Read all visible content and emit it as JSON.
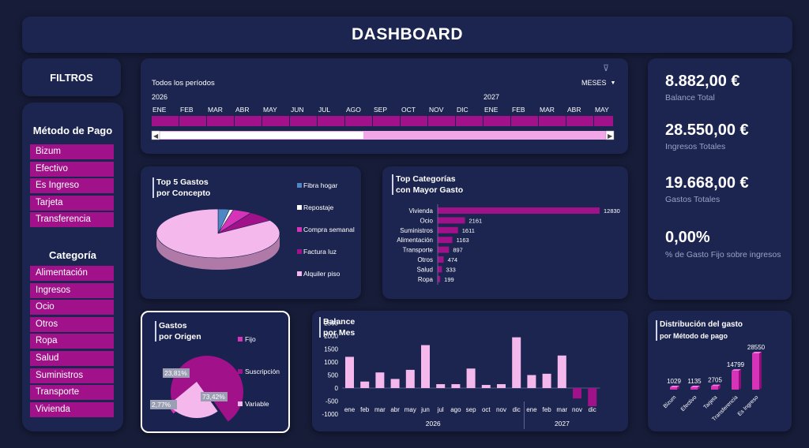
{
  "header": {
    "title": "DASHBOARD"
  },
  "filters": {
    "title": "FILTROS"
  },
  "payment_slicer": {
    "title": "Método de Pago",
    "items": [
      "Bizum",
      "Efectivo",
      "Es Ingreso",
      "Tarjeta",
      "Transferencia"
    ]
  },
  "category_slicer": {
    "title": "Categoría",
    "items": [
      "Alimentación",
      "Ingresos",
      "Ocio",
      "Otros",
      "Ropa",
      "Salud",
      "Suministros",
      "Transporte",
      "Vivienda"
    ]
  },
  "timeline": {
    "period_label": "Todos los períodos",
    "granularity": "MESES",
    "years": [
      "2026",
      "2027"
    ],
    "months": [
      "ENE",
      "FEB",
      "MAR",
      "ABR",
      "MAY",
      "JUN",
      "JUL",
      "AGO",
      "SEP",
      "OCT",
      "NOV",
      "DIC",
      "ENE",
      "FEB",
      "MAR",
      "ABR",
      "MAY"
    ],
    "colors": {
      "bar": "#a0118a",
      "track": "#f2a6e8"
    }
  },
  "kpis": [
    {
      "value": "8.882,00 €",
      "label": "Balance Total"
    },
    {
      "value": "28.550,00 €",
      "label": "Ingresos Totales"
    },
    {
      "value": "19.668,00 €",
      "label": "Gastos Totales"
    },
    {
      "value": "0,00%",
      "label": "% de Gasto Fijo sobre ingresos"
    }
  ],
  "top5": {
    "title1": "Top 5 Gastos",
    "title2": "por Concepto",
    "legend": [
      {
        "label": "Fibra hogar",
        "color": "#4f87c4"
      },
      {
        "label": "Repostaje",
        "color": "#ffffff"
      },
      {
        "label": "Compra semanal",
        "color": "#d633b8"
      },
      {
        "label": "Factura luz",
        "color": "#a0118a"
      },
      {
        "label": "Alquiler piso",
        "color": "#f5b8ec"
      }
    ]
  },
  "topcat": {
    "title1": "Top Categorías",
    "title2": "con Mayor Gasto"
  },
  "origen": {
    "title1": "Gastos",
    "title2": "por Origen",
    "legend": [
      {
        "label": "Fijo",
        "color": "#d633b8"
      },
      {
        "label": "Suscripción",
        "color": "#a0118a"
      },
      {
        "label": "Variable",
        "color": "#f5b8ec"
      }
    ],
    "slice_labels": [
      "23,81%",
      "73,42%",
      "2,77%"
    ]
  },
  "balance": {
    "title1": "Balance",
    "title2": "por Mes",
    "years": [
      "2026",
      "2027"
    ]
  },
  "dist": {
    "title1": "Distribución del gasto",
    "title2": "por Método de pago"
  },
  "chart_data": [
    {
      "type": "pie",
      "labels": [
        "Fibra hogar",
        "Repostaje",
        "Compra semanal",
        "Factura luz",
        "Alquiler piso"
      ],
      "values": [
        3,
        1,
        5,
        7,
        84
      ]
    },
    {
      "type": "bar",
      "orientation": "horizontal",
      "categories": [
        "Vivienda",
        "Ocio",
        "Suministros",
        "Alimentación",
        "Transporte",
        "Otros",
        "Salud",
        "Ropa"
      ],
      "values": [
        12830,
        2161,
        1611,
        1163,
        897,
        474,
        333,
        199
      ]
    },
    {
      "type": "pie",
      "labels": [
        "Fijo",
        "Suscripción",
        "Variable"
      ],
      "values": [
        2.77,
        73.42,
        23.81
      ]
    },
    {
      "type": "bar",
      "categories": [
        "ene",
        "feb",
        "mar",
        "abr",
        "may",
        "jun",
        "jul",
        "ago",
        "sep",
        "oct",
        "nov",
        "dic",
        "ene",
        "feb",
        "mar",
        "nov",
        "dic"
      ],
      "values": [
        1200,
        250,
        600,
        350,
        700,
        1650,
        150,
        150,
        750,
        120,
        150,
        1950,
        500,
        550,
        1250,
        -400,
        -700
      ],
      "ylim": [
        -1000,
        2500
      ],
      "yticks": [
        2500,
        2000,
        1500,
        1000,
        500,
        0,
        -500,
        -1000
      ]
    },
    {
      "type": "bar",
      "categories": [
        "Bizum",
        "Efectivo",
        "Tarjeta",
        "Transferencia",
        "Es Ingreso"
      ],
      "values": [
        1029,
        1135,
        2705,
        14799,
        28550
      ]
    }
  ]
}
